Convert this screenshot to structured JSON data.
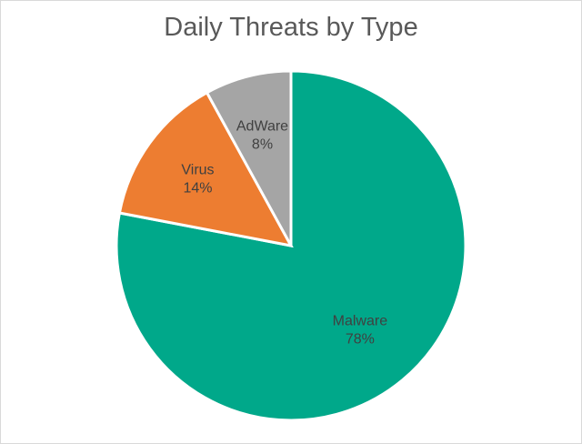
{
  "chart_data": {
    "type": "pie",
    "title": "Daily Threats by Type",
    "slices": [
      {
        "label": "Malware",
        "percent_label": "78%",
        "value": 78,
        "color": "#00A88A"
      },
      {
        "label": "Virus",
        "percent_label": "14%",
        "value": 14,
        "color": "#ED7D31"
      },
      {
        "label": "AdWare",
        "percent_label": "8%",
        "value": 8,
        "color": "#A5A5A5"
      }
    ],
    "start_angle": "12 o'clock",
    "direction": "clockwise",
    "legend": "none",
    "data_labels": "inside"
  }
}
